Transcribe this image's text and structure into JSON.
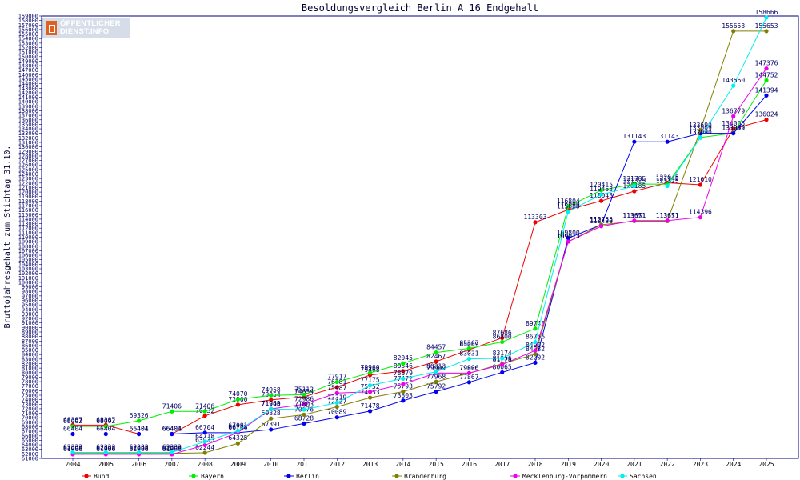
{
  "logo": {
    "line1": "ÖFFENTLICHER",
    "line2": "DIENST.INFO"
  },
  "chart_data": {
    "type": "line",
    "title": "Besoldungsvergleich Berlin A 16 Endgehalt",
    "xlabel": "",
    "ylabel": "Bruttojahresgehalt zum Stichtag 31.10.",
    "categories": [
      "2004",
      "2005",
      "2006",
      "2007",
      "2008",
      "2009",
      "2010",
      "2011",
      "2012",
      "2013",
      "2014",
      "2015",
      "2016",
      "2017",
      "2018",
      "2019",
      "2020",
      "2021",
      "2022",
      "2023",
      "2024",
      "2025"
    ],
    "ylim": [
      61000,
      159000
    ],
    "ytick_step": 1000,
    "legend_position": "bottom",
    "series": [
      {
        "name": "Bund",
        "color": "#ee0000",
        "values": [
          68387,
          68387,
          66401,
          66401,
          70432,
          72900,
          73954,
          74654,
          76781,
          79468,
          80346,
          82467,
          85069,
          87686,
          113303,
          116090,
          118043,
          120185,
          122045,
          121610,
          134005,
          136024
        ]
      },
      {
        "name": "Bayern",
        "color": "#00ee00",
        "values": [
          68092,
          68092,
          69326,
          71406,
          71406,
          74070,
          74958,
          75112,
          77917,
          79960,
          82045,
          84457,
          85367,
          86800,
          89743,
          116804,
          120415,
          121785,
          121745,
          132091,
          133045,
          144752
        ]
      },
      {
        "name": "Berlin",
        "color": "#0000ee",
        "values": [
          66404,
          66404,
          66404,
          66404,
          66704,
          66704,
          67391,
          68728,
          70089,
          71478,
          73803,
          75792,
          77867,
          80065,
          82202,
          109800,
          112755,
          131143,
          131143,
          133009,
          133009,
          141394
        ]
      },
      {
        "name": "Brandenburg",
        "color": "#808000",
        "values": [
          62098,
          62098,
          62098,
          62098,
          62244,
          64325,
          69828,
          70676,
          72427,
          74453,
          75793,
          77968,
          79896,
          81956,
          84082,
          109013,
          112755,
          113551,
          113551,
          133690,
          155653,
          155653
        ]
      },
      {
        "name": "Mecklenburg-Vorpommern",
        "color": "#ee00ee",
        "values": [
          61906,
          61906,
          61906,
          61906,
          63933,
          66718,
          71963,
          72986,
          75487,
          75752,
          77472,
          79909,
          79906,
          81778,
          84902,
          109013,
          112436,
          113671,
          113671,
          114396,
          136779,
          147376
        ]
      },
      {
        "name": "Sachsen",
        "color": "#00eeee",
        "values": [
          62333,
          62333,
          62333,
          62333,
          64718,
          67091,
          71940,
          71803,
          73319,
          77175,
          78679,
          80213,
          83031,
          83174,
          86756,
          115688,
          119453,
          121325,
          121325,
          132020,
          143560,
          158666
        ]
      }
    ]
  }
}
